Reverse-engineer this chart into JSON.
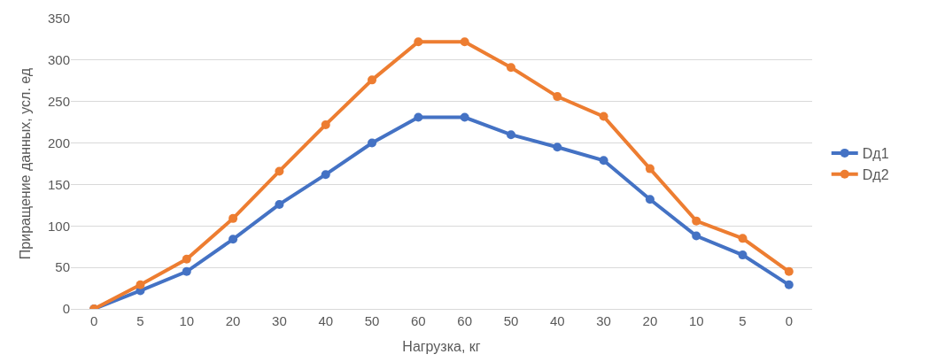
{
  "chart_data": {
    "type": "line",
    "xlabel": "Нагрузка, кг",
    "ylabel": "Приращение данных, усл. ед",
    "categories": [
      "0",
      "5",
      "10",
      "20",
      "30",
      "40",
      "50",
      "60",
      "60",
      "50",
      "40",
      "30",
      "20",
      "10",
      "5",
      "0"
    ],
    "series": [
      {
        "name": "Dд1",
        "color": "#4472c4",
        "values": [
          0,
          22,
          45,
          84,
          126,
          162,
          200,
          231,
          231,
          210,
          195,
          179,
          132,
          88,
          65,
          29
        ]
      },
      {
        "name": "Dд2",
        "color": "#ed7d31",
        "values": [
          0,
          29,
          60,
          109,
          166,
          222,
          276,
          322,
          322,
          291,
          256,
          232,
          169,
          106,
          85,
          45
        ]
      }
    ],
    "ylim": [
      0,
      350
    ],
    "yticks": [
      0,
      50,
      100,
      150,
      200,
      250,
      300,
      350
    ],
    "grid": "y",
    "legend": "right",
    "marker": "circle",
    "line_style": "solid"
  }
}
